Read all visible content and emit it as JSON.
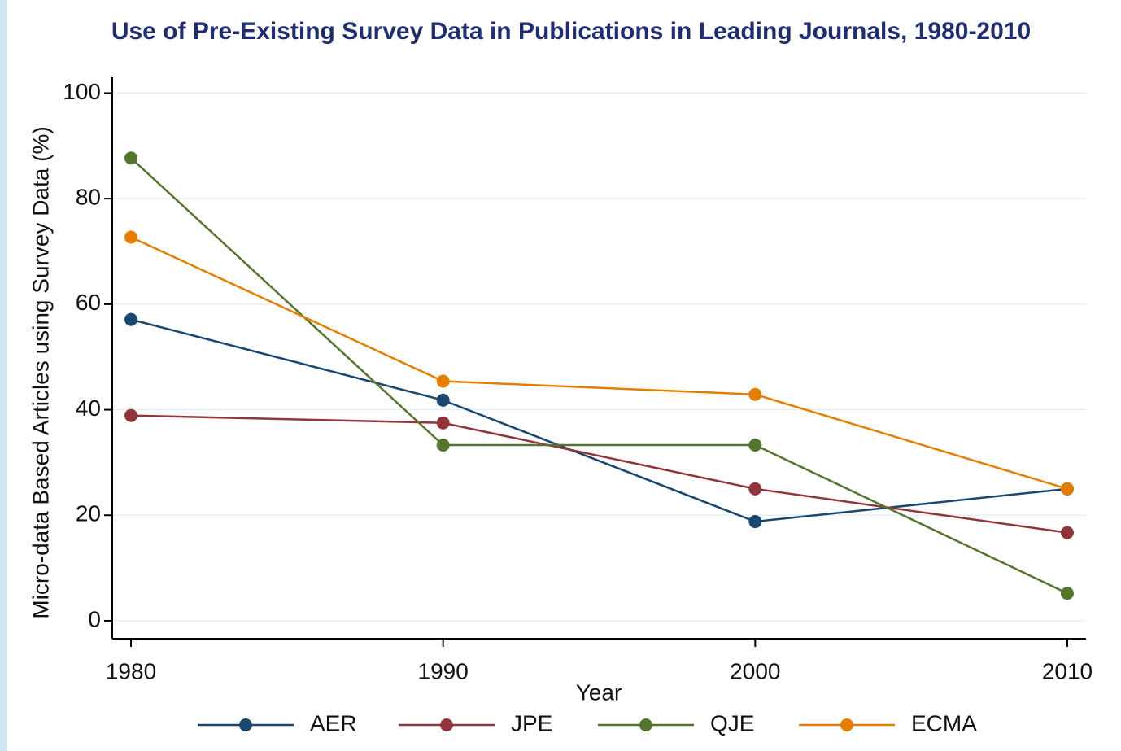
{
  "chart_data": {
    "type": "line",
    "title": "Use of Pre-Existing Survey Data in Publications in Leading Journals, 1980-2010",
    "x_label": "Year",
    "y_label": "Micro-data Based Articles using Survey Data (%)",
    "x": [
      1980,
      1990,
      2000,
      2010
    ],
    "series": [
      {
        "name": "AER",
        "color": "#1a476f",
        "values": [
          57.1,
          41.8,
          18.8,
          25.0
        ]
      },
      {
        "name": "JPE",
        "color": "#90353b",
        "values": [
          38.9,
          37.5,
          25.0,
          16.7
        ]
      },
      {
        "name": "QJE",
        "color": "#55752f",
        "values": [
          87.7,
          33.3,
          33.3,
          5.2
        ]
      },
      {
        "name": "ECMA",
        "color": "#e37e00",
        "values": [
          72.7,
          45.4,
          42.9,
          25.0
        ]
      }
    ],
    "xlim": [
      1979.4,
      2010.6
    ],
    "xticks": [
      1980,
      1990,
      2000,
      2010
    ],
    "ylim": [
      -3.4,
      103
    ],
    "yticks": [
      0,
      20,
      40,
      60,
      80,
      100
    ],
    "grid": true,
    "legend": "bottom"
  }
}
